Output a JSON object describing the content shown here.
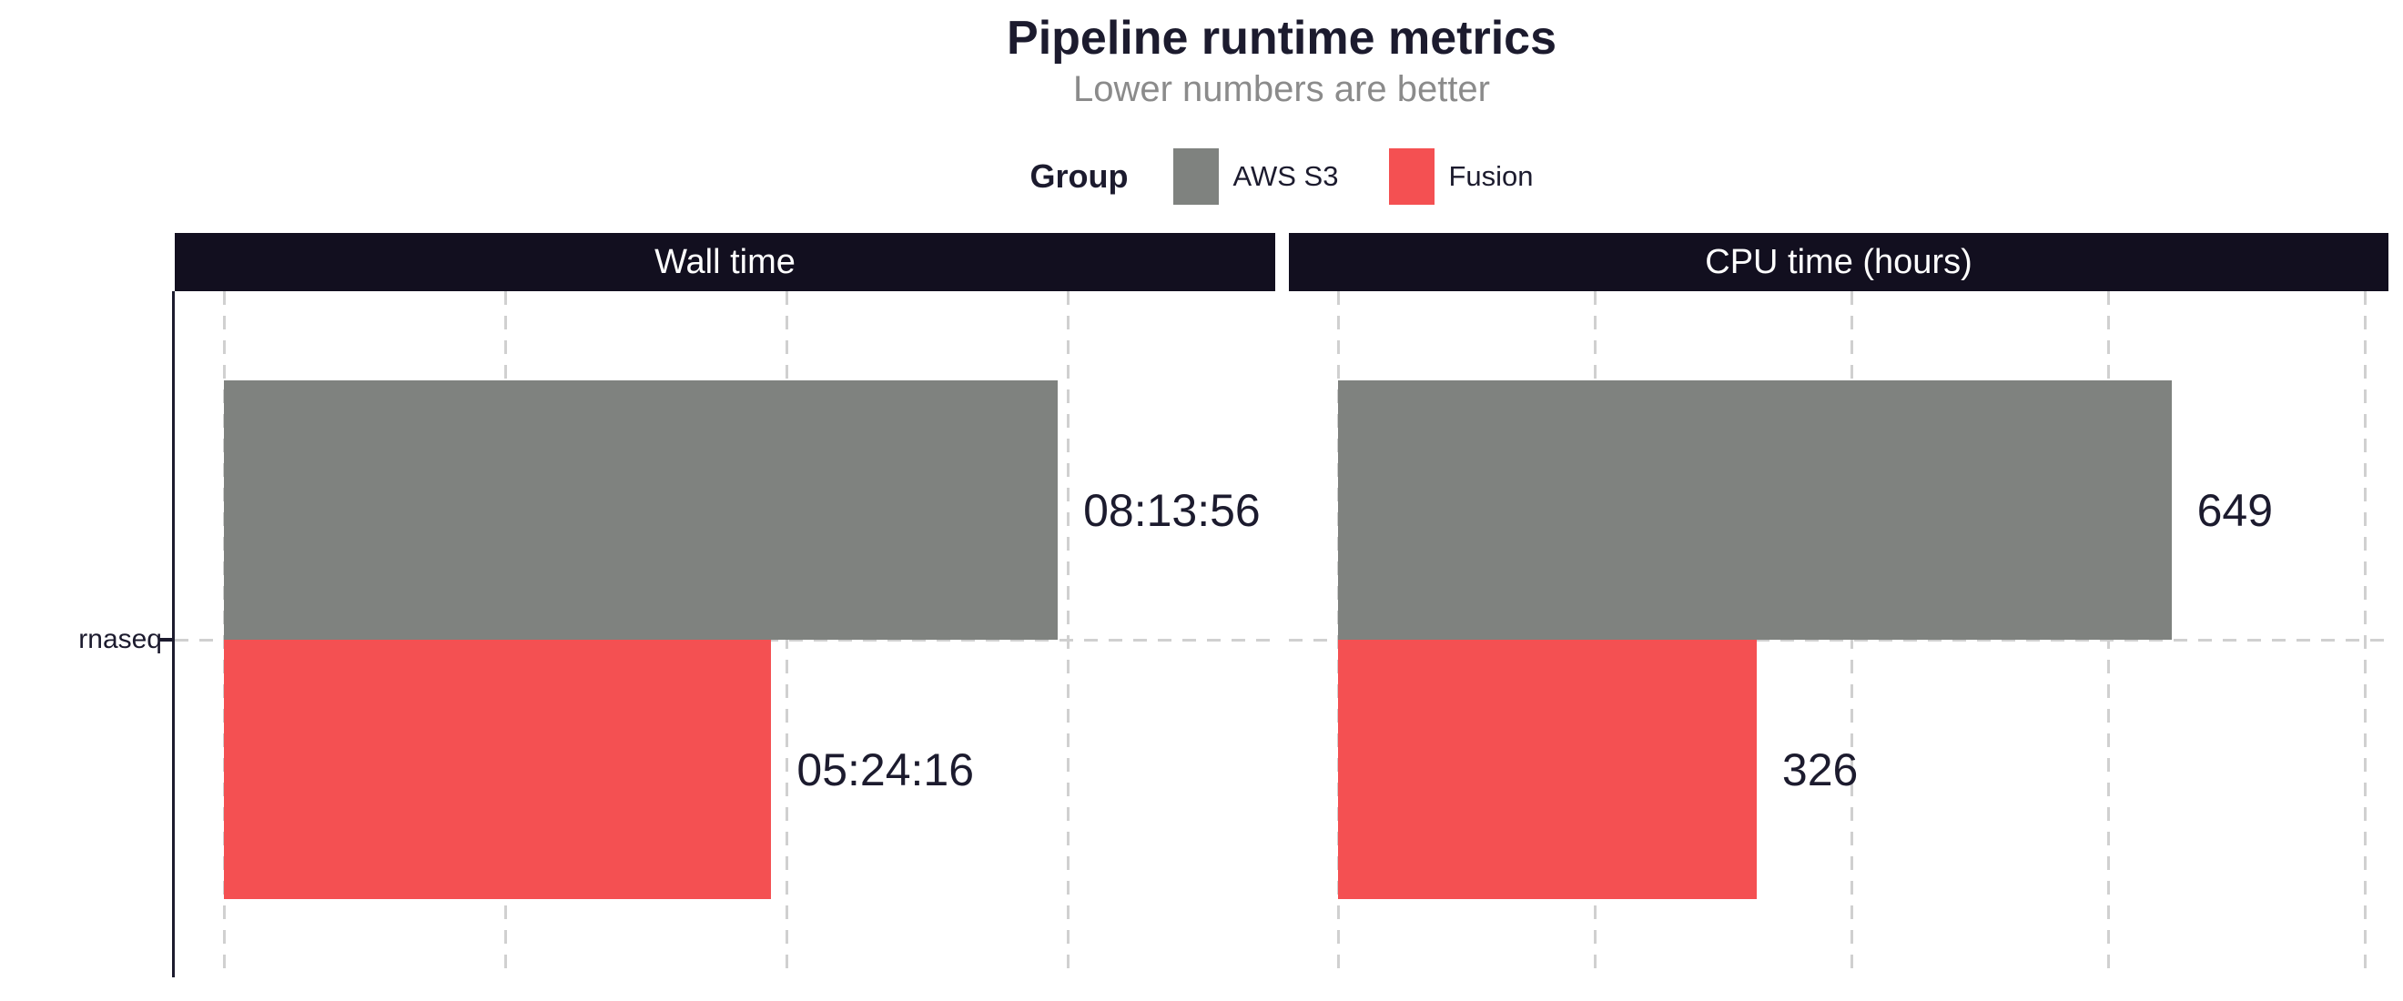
{
  "header": {
    "title": "Pipeline runtime metrics",
    "subtitle": "Lower numbers are better"
  },
  "legend": {
    "title": "Group",
    "position": "top",
    "items": [
      {
        "label": "AWS S3",
        "color": "#7f827f"
      },
      {
        "label": "Fusion",
        "color": "#f45052"
      }
    ]
  },
  "y_axis": {
    "category": "rnaseq"
  },
  "colors": {
    "strip_background": "#120f1f",
    "strip_text": "#ffffff",
    "title_text": "#1c1b2e",
    "subtitle_text": "#8b8b8b",
    "gridline": "#d0d0d0",
    "axis_line": "#1c1b2e",
    "aws_s3": "#7f827f",
    "fusion": "#f45052"
  },
  "chart_data": [
    {
      "type": "bar",
      "panel": "Wall time",
      "orientation": "horizontal",
      "grid": "dashed",
      "categories": [
        "rnaseq"
      ],
      "unit": "seconds",
      "xlim": [
        0,
        37365
      ],
      "grid_x": [
        0,
        10000,
        20000,
        30000
      ],
      "series": [
        {
          "name": "AWS S3",
          "value": 29636,
          "display": "08:13:56",
          "color": "#7f827f"
        },
        {
          "name": "Fusion",
          "value": 19456,
          "display": "05:24:16",
          "color": "#f45052"
        }
      ]
    },
    {
      "type": "bar",
      "panel": "CPU time (hours)",
      "orientation": "horizontal",
      "grid": "dashed",
      "categories": [
        "rnaseq"
      ],
      "unit": "hours",
      "xlim": [
        0,
        818
      ],
      "grid_x": [
        0,
        200,
        400,
        600,
        800
      ],
      "series": [
        {
          "name": "AWS S3",
          "value": 649,
          "display": "649",
          "color": "#7f827f"
        },
        {
          "name": "Fusion",
          "value": 326,
          "display": "326",
          "color": "#f45052"
        }
      ]
    }
  ]
}
